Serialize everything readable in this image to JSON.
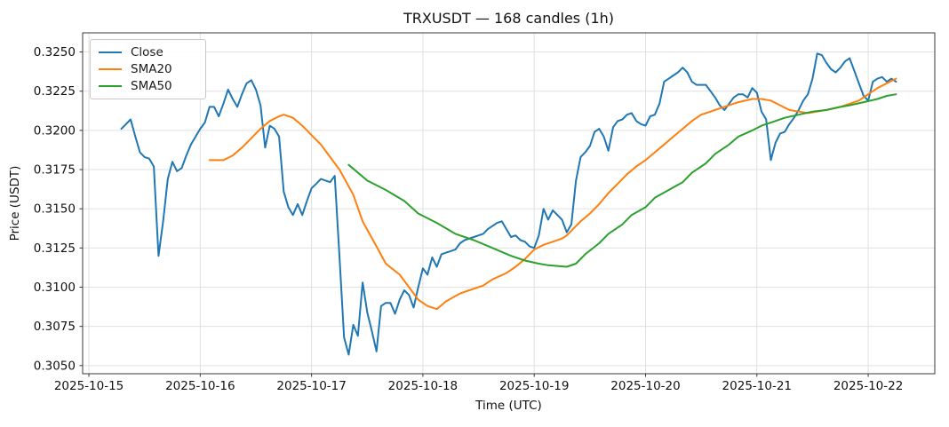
{
  "header": {
    "title": "TRXUSDT — 168 candles (1h)"
  },
  "axes": {
    "xlabel": "Time (UTC)",
    "ylabel": "Price (USDT)"
  },
  "chart_data": {
    "type": "line",
    "title": "TRXUSDT — 168 candles (1h)",
    "xlabel": "Time (UTC)",
    "ylabel": "Price (USDT)",
    "x_unit": "hour index of 168 hourly candles, first candle 2025-10-15 ~07:00 UTC",
    "grid": true,
    "legend_position": "upper left",
    "xlim": [
      -8.35,
      175.35
    ],
    "ylim": [
      0.30448,
      0.32622
    ],
    "x_ticks": [
      {
        "t": -7,
        "label": "2025-10-15"
      },
      {
        "t": 17,
        "label": "2025-10-16"
      },
      {
        "t": 41,
        "label": "2025-10-17"
      },
      {
        "t": 65,
        "label": "2025-10-18"
      },
      {
        "t": 89,
        "label": "2025-10-19"
      },
      {
        "t": 113,
        "label": "2025-10-20"
      },
      {
        "t": 137,
        "label": "2025-10-21"
      },
      {
        "t": 161,
        "label": "2025-10-22"
      }
    ],
    "y_ticks": [
      0.305,
      0.3075,
      0.31,
      0.3125,
      0.315,
      0.3175,
      0.32,
      0.3225,
      0.325
    ],
    "series": [
      {
        "name": "Close",
        "color": "#1f77b4",
        "values": [
          0.3201,
          0.3204,
          0.3207,
          0.3196,
          0.3186,
          0.3183,
          0.3182,
          0.3177,
          0.312,
          0.3142,
          0.3169,
          0.318,
          0.3174,
          0.3176,
          0.3184,
          0.3191,
          0.3196,
          0.3201,
          0.3205,
          0.3215,
          0.3215,
          0.3209,
          0.3217,
          0.3226,
          0.322,
          0.3215,
          0.3223,
          0.323,
          0.3232,
          0.3226,
          0.3216,
          0.3189,
          0.3203,
          0.3201,
          0.3196,
          0.3161,
          0.3151,
          0.3146,
          0.3153,
          0.3146,
          0.3155,
          0.3163,
          0.3166,
          0.3169,
          0.3168,
          0.3167,
          0.3171,
          0.312,
          0.3068,
          0.3057,
          0.3076,
          0.3069,
          0.3103,
          0.3084,
          0.3072,
          0.3059,
          0.3088,
          0.309,
          0.309,
          0.3083,
          0.3092,
          0.3098,
          0.3095,
          0.3087,
          0.31,
          0.3112,
          0.3108,
          0.3119,
          0.3113,
          0.3121,
          0.3122,
          0.3123,
          0.3124,
          0.3128,
          0.313,
          0.3131,
          0.3132,
          0.3133,
          0.3134,
          0.3137,
          0.3139,
          0.3141,
          0.3142,
          0.3137,
          0.3132,
          0.3133,
          0.313,
          0.3129,
          0.3126,
          0.3125,
          0.3133,
          0.315,
          0.3143,
          0.3149,
          0.3146,
          0.3143,
          0.3135,
          0.314,
          0.3168,
          0.3183,
          0.3186,
          0.319,
          0.3199,
          0.3201,
          0.3196,
          0.3187,
          0.3202,
          0.3206,
          0.3207,
          0.321,
          0.3211,
          0.3206,
          0.3204,
          0.3203,
          0.3209,
          0.321,
          0.3217,
          0.3231,
          0.3233,
          0.3235,
          0.3237,
          0.324,
          0.3237,
          0.3231,
          0.3229,
          0.3229,
          0.3229,
          0.3225,
          0.3221,
          0.3216,
          0.3213,
          0.3217,
          0.3221,
          0.3223,
          0.3223,
          0.3221,
          0.3227,
          0.3224,
          0.3212,
          0.3207,
          0.3181,
          0.3192,
          0.3198,
          0.3199,
          0.3204,
          0.3208,
          0.3213,
          0.3219,
          0.3223,
          0.3233,
          0.3249,
          0.3248,
          0.3243,
          0.3239,
          0.3237,
          0.324,
          0.3244,
          0.3246,
          0.3238,
          0.323,
          0.3222,
          0.3219,
          0.3231,
          0.3233,
          0.3234,
          0.3231,
          0.3233,
          0.3231
        ]
      },
      {
        "name": "SMA20",
        "color": "#ff7f0e",
        "points": [
          [
            19,
            0.3181
          ],
          [
            22,
            0.3181
          ],
          [
            24,
            0.3184
          ],
          [
            26,
            0.3189
          ],
          [
            28,
            0.3195
          ],
          [
            30,
            0.3201
          ],
          [
            32,
            0.3206
          ],
          [
            34,
            0.3209
          ],
          [
            35,
            0.321
          ],
          [
            37,
            0.3208
          ],
          [
            39,
            0.3203
          ],
          [
            41,
            0.3197
          ],
          [
            43,
            0.3191
          ],
          [
            45,
            0.3183
          ],
          [
            47,
            0.3175
          ],
          [
            50,
            0.3159
          ],
          [
            52,
            0.3142
          ],
          [
            55,
            0.3126
          ],
          [
            57,
            0.3115
          ],
          [
            60,
            0.3108
          ],
          [
            62,
            0.31
          ],
          [
            64,
            0.3092
          ],
          [
            66,
            0.3088
          ],
          [
            68,
            0.3086
          ],
          [
            70,
            0.3091
          ],
          [
            73,
            0.3096
          ],
          [
            75,
            0.3098
          ],
          [
            78,
            0.3101
          ],
          [
            80,
            0.3105
          ],
          [
            83,
            0.3109
          ],
          [
            85,
            0.3113
          ],
          [
            87,
            0.3118
          ],
          [
            89,
            0.3124
          ],
          [
            91,
            0.3127
          ],
          [
            93,
            0.3129
          ],
          [
            95,
            0.3131
          ],
          [
            96,
            0.3133
          ],
          [
            97,
            0.3136
          ],
          [
            99,
            0.3142
          ],
          [
            101,
            0.3147
          ],
          [
            103,
            0.3153
          ],
          [
            105,
            0.316
          ],
          [
            107,
            0.3166
          ],
          [
            109,
            0.3172
          ],
          [
            111,
            0.3177
          ],
          [
            113,
            0.3181
          ],
          [
            115,
            0.3186
          ],
          [
            117,
            0.3191
          ],
          [
            119,
            0.3196
          ],
          [
            121,
            0.3201
          ],
          [
            123,
            0.3206
          ],
          [
            125,
            0.321
          ],
          [
            127,
            0.3212
          ],
          [
            129,
            0.3214
          ],
          [
            131,
            0.3216
          ],
          [
            133,
            0.3218
          ],
          [
            136,
            0.322
          ],
          [
            138,
            0.322
          ],
          [
            140,
            0.3219
          ],
          [
            142,
            0.3216
          ],
          [
            144,
            0.3213
          ],
          [
            146,
            0.3212
          ],
          [
            148,
            0.3211
          ],
          [
            150,
            0.3212
          ],
          [
            152,
            0.3213
          ],
          [
            155,
            0.3215
          ],
          [
            157,
            0.3217
          ],
          [
            159,
            0.3219
          ],
          [
            161,
            0.3223
          ],
          [
            163,
            0.3227
          ],
          [
            165,
            0.323
          ],
          [
            167,
            0.3233
          ]
        ]
      },
      {
        "name": "SMA50",
        "color": "#2ca02c",
        "points": [
          [
            49,
            0.3178
          ],
          [
            53,
            0.3168
          ],
          [
            57,
            0.3162
          ],
          [
            61,
            0.3155
          ],
          [
            64,
            0.3147
          ],
          [
            68,
            0.3141
          ],
          [
            72,
            0.3134
          ],
          [
            76,
            0.313
          ],
          [
            80,
            0.3125
          ],
          [
            84,
            0.312
          ],
          [
            87,
            0.3117
          ],
          [
            90,
            0.3115
          ],
          [
            92,
            0.3114
          ],
          [
            96,
            0.3113
          ],
          [
            98,
            0.3115
          ],
          [
            100,
            0.3121
          ],
          [
            103,
            0.3128
          ],
          [
            105,
            0.3134
          ],
          [
            108,
            0.314
          ],
          [
            110,
            0.3146
          ],
          [
            113,
            0.3151
          ],
          [
            115,
            0.3157
          ],
          [
            118,
            0.3162
          ],
          [
            121,
            0.3167
          ],
          [
            123,
            0.3173
          ],
          [
            126,
            0.3179
          ],
          [
            128,
            0.3185
          ],
          [
            131,
            0.3191
          ],
          [
            133,
            0.3196
          ],
          [
            136,
            0.32
          ],
          [
            138,
            0.3203
          ],
          [
            141,
            0.3206
          ],
          [
            143,
            0.3208
          ],
          [
            146,
            0.321
          ],
          [
            149,
            0.3212
          ],
          [
            152,
            0.3213
          ],
          [
            155,
            0.3215
          ],
          [
            157,
            0.3216
          ],
          [
            160,
            0.3218
          ],
          [
            163,
            0.322
          ],
          [
            165,
            0.3222
          ],
          [
            167,
            0.3223
          ]
        ]
      }
    ],
    "style": {
      "grid_color": "#e0e0e0",
      "spine_color": "#3a3a3a",
      "tick_color": "#3a3a3a",
      "text_color": "#111111",
      "background": "#ffffff"
    }
  }
}
